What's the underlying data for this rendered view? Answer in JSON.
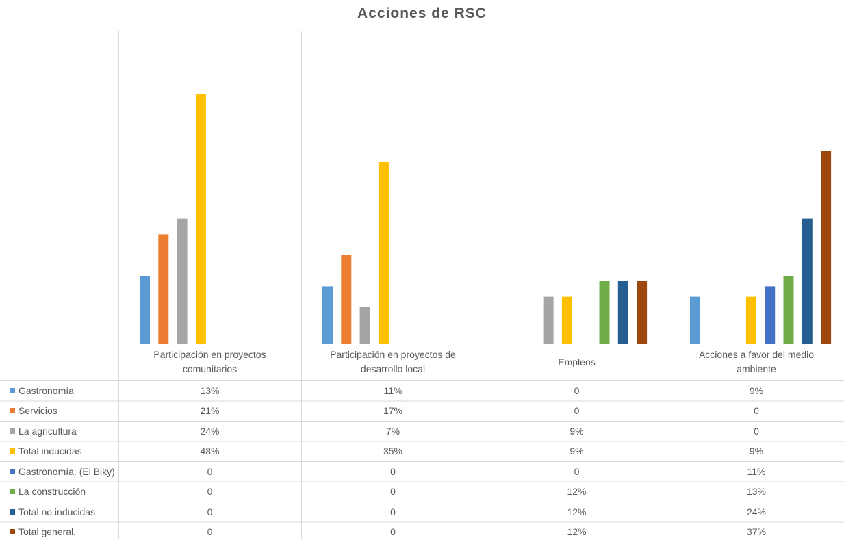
{
  "chart_data": {
    "type": "bar",
    "title": "Acciones de RSC",
    "xlabel": "",
    "ylabel": "",
    "ylim": [
      0,
      50
    ],
    "grid": false,
    "legend": "data-table",
    "categories": [
      "Participación en proyectos comunitarios",
      "Participación en proyectos de desarrollo local",
      "Empleos",
      "Acciones a favor del medio ambiente"
    ],
    "series": [
      {
        "name": "Gastronomía",
        "color": "#5B9BD5",
        "values": [
          13,
          11,
          0,
          9
        ],
        "labels": [
          "13%",
          "11%",
          "0",
          "9%"
        ]
      },
      {
        "name": "Servicios",
        "color": "#ED7D31",
        "values": [
          21,
          17,
          0,
          0
        ],
        "labels": [
          "21%",
          "17%",
          "0",
          "0"
        ]
      },
      {
        "name": "La agricultura",
        "color": "#A5A5A5",
        "values": [
          24,
          7,
          9,
          0
        ],
        "labels": [
          "24%",
          "7%",
          "9%",
          "0"
        ]
      },
      {
        "name": "Total inducidas",
        "color": "#FFC000",
        "values": [
          48,
          35,
          9,
          9
        ],
        "labels": [
          "48%",
          "35%",
          "9%",
          "9%"
        ]
      },
      {
        "name": "Gastronomía. (El Biky)",
        "color": "#4472C4",
        "values": [
          0,
          0,
          0,
          11
        ],
        "labels": [
          "0",
          "0",
          "0",
          "11%"
        ]
      },
      {
        "name": "La construcción",
        "color": "#70AD47",
        "values": [
          0,
          0,
          12,
          13
        ],
        "labels": [
          "0",
          "0",
          "12%",
          "13%"
        ]
      },
      {
        "name": "Total no inducidas",
        "color": "#255E91",
        "values": [
          0,
          0,
          12,
          24
        ],
        "labels": [
          "0",
          "0",
          "12%",
          "24%"
        ]
      },
      {
        "name": "Total general.",
        "color": "#9E480E",
        "values": [
          0,
          0,
          12,
          37
        ],
        "labels": [
          "0",
          "0",
          "12%",
          "37%"
        ]
      }
    ]
  }
}
